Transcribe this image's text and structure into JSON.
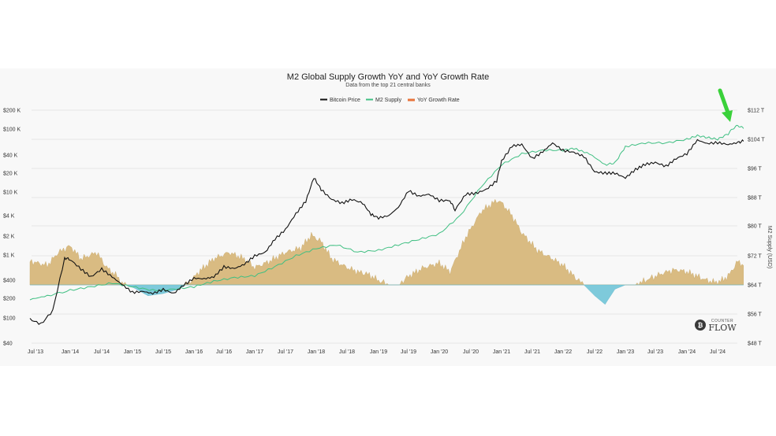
{
  "colors": {
    "bitcoin": "#111111",
    "m2": "#3fbf82",
    "growth_positive": "#d9bb82",
    "growth_negative": "#7ecadb",
    "arrow": "#3ad13a",
    "growth_legend": "#e8743b"
  },
  "chart_data": {
    "type": "line",
    "title": "M2 Global Supply Growth YoY and YoY Growth Rate",
    "subtitle": "Data from the top 21 central banks",
    "ylabel_right": "M2 Supply (USD)",
    "legend": [
      "Bitcoin Price",
      "M2 Supply",
      "YoY Growth Rate"
    ],
    "legend_position": "top-center",
    "x_ticks": [
      "Jul '13",
      "Jan '14",
      "Jul '14",
      "Jan '15",
      "Jul '15",
      "Jan '16",
      "Jul '16",
      "Jan '17",
      "Jul '17",
      "Jan '18",
      "Jul '18",
      "Jan '19",
      "Jul '19",
      "Jan '20",
      "Jul '20",
      "Jan '21",
      "Jul '21",
      "Jan '22",
      "Jul '22",
      "Jan '23",
      "Jul '23",
      "Jan '24",
      "Jul '24"
    ],
    "y_left_ticks": [
      "$200 K",
      "$100 K",
      "$40 K",
      "$20 K",
      "$10 K",
      "$4 K",
      "$2 K",
      "$1 K",
      "$400",
      "$200",
      "$100",
      "$40"
    ],
    "y_left_values": [
      200000,
      100000,
      40000,
      20000,
      10000,
      4000,
      2000,
      1000,
      400,
      200,
      100,
      40
    ],
    "y_right_ticks": [
      "$112 T",
      "$104 T",
      "$96 T",
      "$88 T",
      "$80 T",
      "$72 T",
      "$64 T",
      "$56 T",
      "$48 T"
    ],
    "y_right_values": [
      112,
      104,
      96,
      88,
      80,
      72,
      64,
      56,
      48
    ],
    "x_range": [
      2013.42,
      2024.92
    ],
    "log_scale_left": true,
    "grid": "horizontal",
    "series": [
      {
        "name": "Bitcoin Price",
        "axis": "left",
        "x": [
          2013.42,
          2013.58,
          2013.75,
          2013.92,
          2014.0,
          2014.17,
          2014.33,
          2014.5,
          2014.67,
          2014.83,
          2015.0,
          2015.17,
          2015.33,
          2015.5,
          2015.67,
          2015.83,
          2016.0,
          2016.17,
          2016.33,
          2016.5,
          2016.67,
          2016.83,
          2017.0,
          2017.17,
          2017.33,
          2017.5,
          2017.67,
          2017.83,
          2017.96,
          2018.08,
          2018.25,
          2018.42,
          2018.58,
          2018.75,
          2018.88,
          2019.0,
          2019.17,
          2019.33,
          2019.5,
          2019.67,
          2019.83,
          2020.0,
          2020.17,
          2020.25,
          2020.42,
          2020.58,
          2020.75,
          2020.92,
          2021.0,
          2021.17,
          2021.33,
          2021.5,
          2021.67,
          2021.83,
          2022.0,
          2022.17,
          2022.33,
          2022.5,
          2022.67,
          2022.83,
          2023.0,
          2023.17,
          2023.33,
          2023.5,
          2023.67,
          2023.83,
          2024.0,
          2024.17,
          2024.33,
          2024.5,
          2024.67,
          2024.83,
          2024.92
        ],
        "values": [
          95,
          80,
          130,
          900,
          850,
          600,
          450,
          600,
          450,
          340,
          250,
          260,
          240,
          280,
          240,
          330,
          430,
          420,
          450,
          650,
          610,
          710,
          970,
          1100,
          1800,
          2500,
          4300,
          7000,
          17000,
          11000,
          7500,
          6500,
          7500,
          6500,
          4200,
          3700,
          4000,
          5500,
          10500,
          8500,
          9200,
          7200,
          7200,
          5000,
          9200,
          9500,
          11000,
          15000,
          32000,
          55000,
          58000,
          35000,
          45000,
          61000,
          47000,
          44000,
          38000,
          21000,
          20000,
          20000,
          16800,
          23000,
          28000,
          30000,
          26000,
          35000,
          42000,
          68000,
          60000,
          62000,
          58000,
          62000,
          66000
        ]
      },
      {
        "name": "M2 Supply",
        "axis": "right",
        "x": [
          2013.42,
          2013.67,
          2014.0,
          2014.33,
          2014.67,
          2015.0,
          2015.33,
          2015.67,
          2016.0,
          2016.33,
          2016.67,
          2017.0,
          2017.33,
          2017.67,
          2018.0,
          2018.33,
          2018.67,
          2019.0,
          2019.33,
          2019.67,
          2020.0,
          2020.33,
          2020.67,
          2021.0,
          2021.33,
          2021.67,
          2022.0,
          2022.17,
          2022.42,
          2022.67,
          2022.83,
          2023.0,
          2023.33,
          2023.67,
          2024.0,
          2024.17,
          2024.33,
          2024.5,
          2024.67,
          2024.75,
          2024.83,
          2024.92
        ],
        "values": [
          60,
          61,
          62.5,
          63.5,
          64.5,
          63.5,
          62.5,
          62.8,
          63.5,
          65,
          66,
          66.5,
          69,
          72,
          74,
          75,
          73,
          73.5,
          75,
          76.5,
          78,
          83,
          91,
          97,
          100,
          101,
          101,
          101.5,
          100,
          97,
          97.5,
          102,
          103,
          103,
          104,
          105,
          104.5,
          104,
          105.5,
          107,
          107.8,
          107
        ]
      },
      {
        "name": "YoY Growth Rate",
        "axis": "right-overlay",
        "unit": "%",
        "x": [
          2013.42,
          2013.67,
          2013.83,
          2014.0,
          2014.17,
          2014.42,
          2014.58,
          2014.75,
          2014.83,
          2015.0,
          2015.25,
          2015.5,
          2015.75,
          2015.92,
          2016.08,
          2016.33,
          2016.58,
          2016.83,
          2017.0,
          2017.25,
          2017.5,
          2017.75,
          2017.92,
          2018.08,
          2018.25,
          2018.5,
          2018.67,
          2018.83,
          2019.0,
          2019.17,
          2019.33,
          2019.5,
          2019.75,
          2020.0,
          2020.17,
          2020.42,
          2020.67,
          2020.92,
          2021.0,
          2021.17,
          2021.33,
          2021.58,
          2021.83,
          2022.0,
          2022.17,
          2022.33,
          2022.5,
          2022.67,
          2022.83,
          2023.0,
          2023.17,
          2023.33,
          2023.5,
          2023.67,
          2023.83,
          2024.0,
          2024.17,
          2024.33,
          2024.5,
          2024.67,
          2024.83,
          2024.92
        ],
        "values": [
          5.5,
          4.5,
          7.5,
          9,
          6,
          7.5,
          4,
          2,
          0.3,
          -0.5,
          -2.5,
          -2,
          -1,
          0.5,
          3,
          6,
          7.5,
          6,
          4,
          5.5,
          7.5,
          8.5,
          11.5,
          10,
          6,
          4,
          3,
          2.5,
          1,
          0,
          0,
          2,
          4,
          5,
          3,
          11,
          17,
          19.5,
          19,
          16,
          12,
          8,
          6,
          4.5,
          2,
          0,
          -2.5,
          -4.5,
          -1,
          0,
          0,
          1,
          2,
          3,
          3.5,
          3,
          2,
          1,
          0.5,
          2,
          5.5,
          4.5
        ]
      }
    ]
  },
  "logo": {
    "top": "COUNTER",
    "bottom": "FLOW"
  }
}
